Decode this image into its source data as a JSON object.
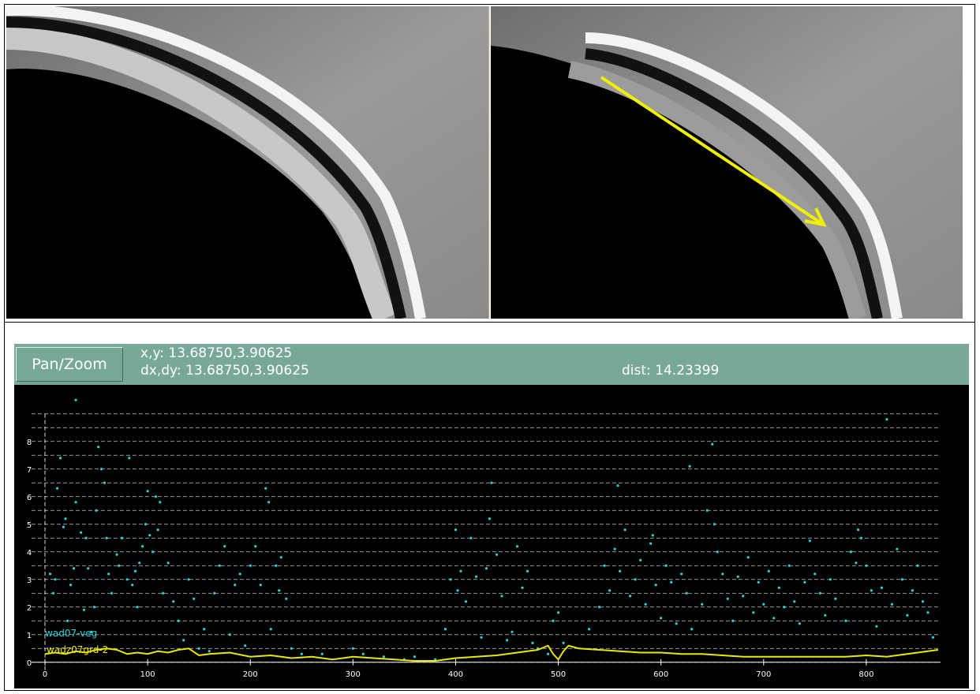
{
  "toolbar": {
    "button": "Pan/Zoom",
    "xy": "x,y: 13.68750,3.90625",
    "dxdy": "dx,dy: 13.68750,3.90625",
    "dist": "dist: 14.23399"
  },
  "chart_data": {
    "type": "scatter",
    "xlim": [
      -30,
      900
    ],
    "ylim": [
      -0.95,
      10.05
    ],
    "xticks": [
      0,
      100,
      200,
      300,
      400,
      500,
      600,
      700,
      800
    ],
    "yticks": [
      0,
      1,
      2,
      3,
      4,
      5,
      6,
      7,
      8
    ],
    "ygrid": [
      0,
      0.5,
      1,
      1.5,
      2,
      2.5,
      3,
      3.5,
      4,
      4.5,
      5,
      5.5,
      6,
      6.5,
      7,
      7.5,
      8,
      8.5,
      9
    ],
    "series": [
      {
        "name": "wad07-veg",
        "color": "#22d3dc",
        "type": "scatter",
        "x": [
          5,
          8,
          10,
          12,
          15,
          18,
          20,
          22,
          25,
          28,
          30,
          30,
          35,
          38,
          40,
          42,
          45,
          48,
          50,
          52,
          55,
          58,
          60,
          62,
          65,
          70,
          72,
          75,
          80,
          82,
          85,
          88,
          90,
          92,
          95,
          98,
          100,
          102,
          105,
          108,
          110,
          112,
          115,
          120,
          125,
          130,
          135,
          140,
          145,
          150,
          155,
          160,
          165,
          170,
          175,
          180,
          185,
          190,
          195,
          200,
          205,
          210,
          215,
          218,
          220,
          225,
          228,
          230,
          235,
          240,
          250,
          270,
          300,
          310,
          330,
          350,
          360,
          380,
          390,
          395,
          400,
          402,
          405,
          410,
          415,
          420,
          425,
          430,
          433,
          435,
          440,
          445,
          450,
          455,
          460,
          465,
          470,
          475,
          480,
          490,
          495,
          500,
          505,
          530,
          540,
          545,
          550,
          555,
          558,
          560,
          565,
          570,
          575,
          580,
          585,
          590,
          592,
          595,
          600,
          605,
          610,
          615,
          620,
          625,
          628,
          630,
          640,
          645,
          650,
          652,
          655,
          660,
          665,
          670,
          675,
          680,
          685,
          690,
          695,
          700,
          705,
          710,
          715,
          720,
          725,
          730,
          735,
          740,
          745,
          750,
          755,
          760,
          765,
          770,
          780,
          785,
          790,
          792,
          795,
          800,
          805,
          810,
          815,
          820,
          825,
          830,
          835,
          840,
          845,
          850,
          855,
          860,
          865
        ],
        "values": [
          3.2,
          2.5,
          3.0,
          6.3,
          7.4,
          4.9,
          5.2,
          1.5,
          2.8,
          3.4,
          5.8,
          9.5,
          4.7,
          1.9,
          4.5,
          3.4,
          1.1,
          2.0,
          5.5,
          7.8,
          7.0,
          6.5,
          4.5,
          3.2,
          2.5,
          3.9,
          3.5,
          4.5,
          3.0,
          7.4,
          2.8,
          3.3,
          2.0,
          3.6,
          4.2,
          5.0,
          6.2,
          4.6,
          4.0,
          6.0,
          4.8,
          5.8,
          2.5,
          3.6,
          2.2,
          1.5,
          0.8,
          3.0,
          2.3,
          0.5,
          1.2,
          0.4,
          2.5,
          3.5,
          4.2,
          1.0,
          2.8,
          3.2,
          0.6,
          3.5,
          4.2,
          2.8,
          6.3,
          5.8,
          1.2,
          3.5,
          2.6,
          3.8,
          2.3,
          0.5,
          0.3,
          0.3,
          0.5,
          0.3,
          0.2,
          0.1,
          0.2,
          0.1,
          1.2,
          3.0,
          4.8,
          2.6,
          3.3,
          2.2,
          4.5,
          3.1,
          0.9,
          3.4,
          5.2,
          6.5,
          3.9,
          2.4,
          0.8,
          1.1,
          4.2,
          2.7,
          3.3,
          0.7,
          0.5,
          0.3,
          1.5,
          1.8,
          0.7,
          1.2,
          2.0,
          3.5,
          2.6,
          4.1,
          6.4,
          3.3,
          4.8,
          2.4,
          3.0,
          3.7,
          2.1,
          4.3,
          4.6,
          2.8,
          1.6,
          3.5,
          2.9,
          1.4,
          3.2,
          2.5,
          7.1,
          1.2,
          2.1,
          5.5,
          7.9,
          5.0,
          4.0,
          3.2,
          2.3,
          1.5,
          3.1,
          2.4,
          3.8,
          1.8,
          2.9,
          2.1,
          3.3,
          1.6,
          2.7,
          2.0,
          3.5,
          2.2,
          1.4,
          2.9,
          4.4,
          3.2,
          2.5,
          1.7,
          3.0,
          2.3,
          1.5,
          4.0,
          3.6,
          4.8,
          4.5,
          3.5,
          2.6,
          1.3,
          2.7,
          8.8,
          2.1,
          4.1,
          3.0,
          1.7,
          2.6,
          3.5,
          2.2,
          1.8,
          0.9
        ]
      },
      {
        "name": "wadz07grd-2",
        "color": "#e8e800",
        "type": "line",
        "x": [
          0,
          10,
          20,
          30,
          40,
          50,
          60,
          70,
          80,
          90,
          100,
          110,
          120,
          130,
          140,
          150,
          160,
          180,
          200,
          220,
          240,
          260,
          280,
          300,
          320,
          340,
          360,
          380,
          400,
          420,
          440,
          460,
          480,
          490,
          495,
          500,
          505,
          510,
          520,
          540,
          560,
          580,
          600,
          620,
          640,
          660,
          680,
          700,
          720,
          740,
          760,
          780,
          800,
          820,
          840,
          860,
          870
        ],
        "values": [
          0.3,
          0.35,
          0.3,
          0.4,
          0.35,
          0.45,
          0.5,
          0.45,
          0.3,
          0.35,
          0.3,
          0.4,
          0.35,
          0.45,
          0.5,
          0.25,
          0.3,
          0.35,
          0.2,
          0.25,
          0.15,
          0.2,
          0.1,
          0.2,
          0.15,
          0.1,
          0.05,
          0.05,
          0.15,
          0.2,
          0.25,
          0.35,
          0.45,
          0.6,
          0.3,
          0.1,
          0.4,
          0.6,
          0.5,
          0.45,
          0.4,
          0.35,
          0.35,
          0.3,
          0.3,
          0.25,
          0.2,
          0.2,
          0.2,
          0.2,
          0.2,
          0.2,
          0.25,
          0.2,
          0.3,
          0.4,
          0.45
        ]
      }
    ]
  }
}
